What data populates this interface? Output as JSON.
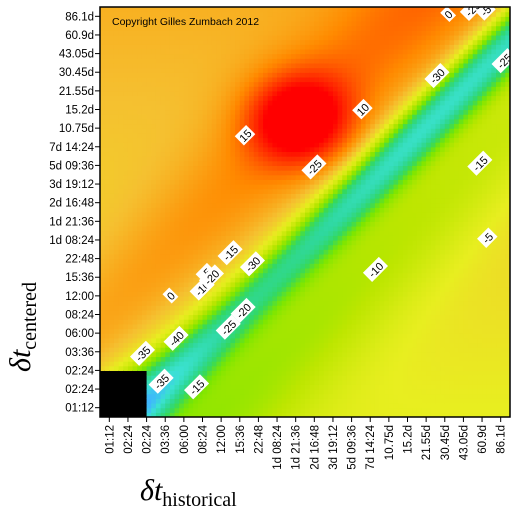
{
  "chart_data": {
    "type": "heatmap",
    "copyright": "Copyright Gilles Zumbach 2012",
    "xlabel": {
      "main": "δt",
      "sub": "historical"
    },
    "ylabel": {
      "main": "δt",
      "sub": "centered"
    },
    "x_ticks": [
      "01:12",
      "02:24",
      "02:24",
      "03:36",
      "06:00",
      "08:24",
      "12:00",
      "15:36",
      "22:48",
      "1d 08:24",
      "1d 21:36",
      "2d 16:48",
      "3d 19:12",
      "5d 09:36",
      "7d 14:24",
      "10.75d",
      "15.2d",
      "21.55d",
      "30.45d",
      "43.05d",
      "60.9d",
      "86.1d"
    ],
    "y_ticks": [
      "01:12",
      "02:24",
      "02:24",
      "03:36",
      "06:00",
      "08:24",
      "12:00",
      "15:36",
      "22:48",
      "1d 08:24",
      "1d 21:36",
      "2d 16:48",
      "3d 19:12",
      "5d 09:36",
      "7d 14:24",
      "10.75d",
      "15.2d",
      "21.55d",
      "30.45d",
      "43.05d",
      "60.9d",
      "86.1d"
    ],
    "contour_labels": [
      {
        "text": "-5",
        "x": 20.3,
        "y": 9.1
      },
      {
        "text": "-10",
        "x": 14.3,
        "y": 7.4
      },
      {
        "text": "-15",
        "x": 19.9,
        "y": 13.1
      },
      {
        "text": "-15",
        "x": 4.7,
        "y": 1.1
      },
      {
        "text": "-20",
        "x": 7.2,
        "y": 5.2
      },
      {
        "text": "-25",
        "x": 6.4,
        "y": 4.3
      },
      {
        "text": "-25",
        "x": 11.0,
        "y": 12.9
      },
      {
        "text": "-30",
        "x": 7.7,
        "y": 7.7
      },
      {
        "text": "-30",
        "x": 17.6,
        "y": 17.8
      },
      {
        "text": "-35",
        "x": 2.8,
        "y": 1.4
      },
      {
        "text": "-35",
        "x": 1.8,
        "y": 2.9
      },
      {
        "text": "-40",
        "x": 3.6,
        "y": 3.7
      },
      {
        "text": "-5",
        "x": 5.2,
        "y": 7.2
      },
      {
        "text": "-10",
        "x": 5.0,
        "y": 6.4
      },
      {
        "text": "-15",
        "x": 6.5,
        "y": 8.3
      },
      {
        "text": "-20",
        "x": 5.5,
        "y": 7.0
      },
      {
        "text": "0",
        "x": 3.3,
        "y": 6.0
      },
      {
        "text": "0",
        "x": 18.2,
        "y": 21.1
      },
      {
        "text": "-5",
        "x": 20.2,
        "y": 21.3
      },
      {
        "text": "-25",
        "x": 19.5,
        "y": 21.4
      },
      {
        "text": "-25",
        "x": 21.2,
        "y": 18.6
      },
      {
        "text": "10",
        "x": 13.6,
        "y": 16.0
      },
      {
        "text": "15",
        "x": 7.3,
        "y": 14.6
      }
    ],
    "colorscale": [
      "#000000",
      "#0000dd",
      "#1e63ff",
      "#3fb4ff",
      "#3be2d2",
      "#2fd89e",
      "#33d860",
      "#7be600",
      "#bde600",
      "#e8ee20",
      "#f5c030",
      "#ff8a00",
      "#ff4000",
      "#ff0000"
    ],
    "zrange": [
      -45,
      20
    ],
    "grid": false,
    "legend": "none"
  }
}
